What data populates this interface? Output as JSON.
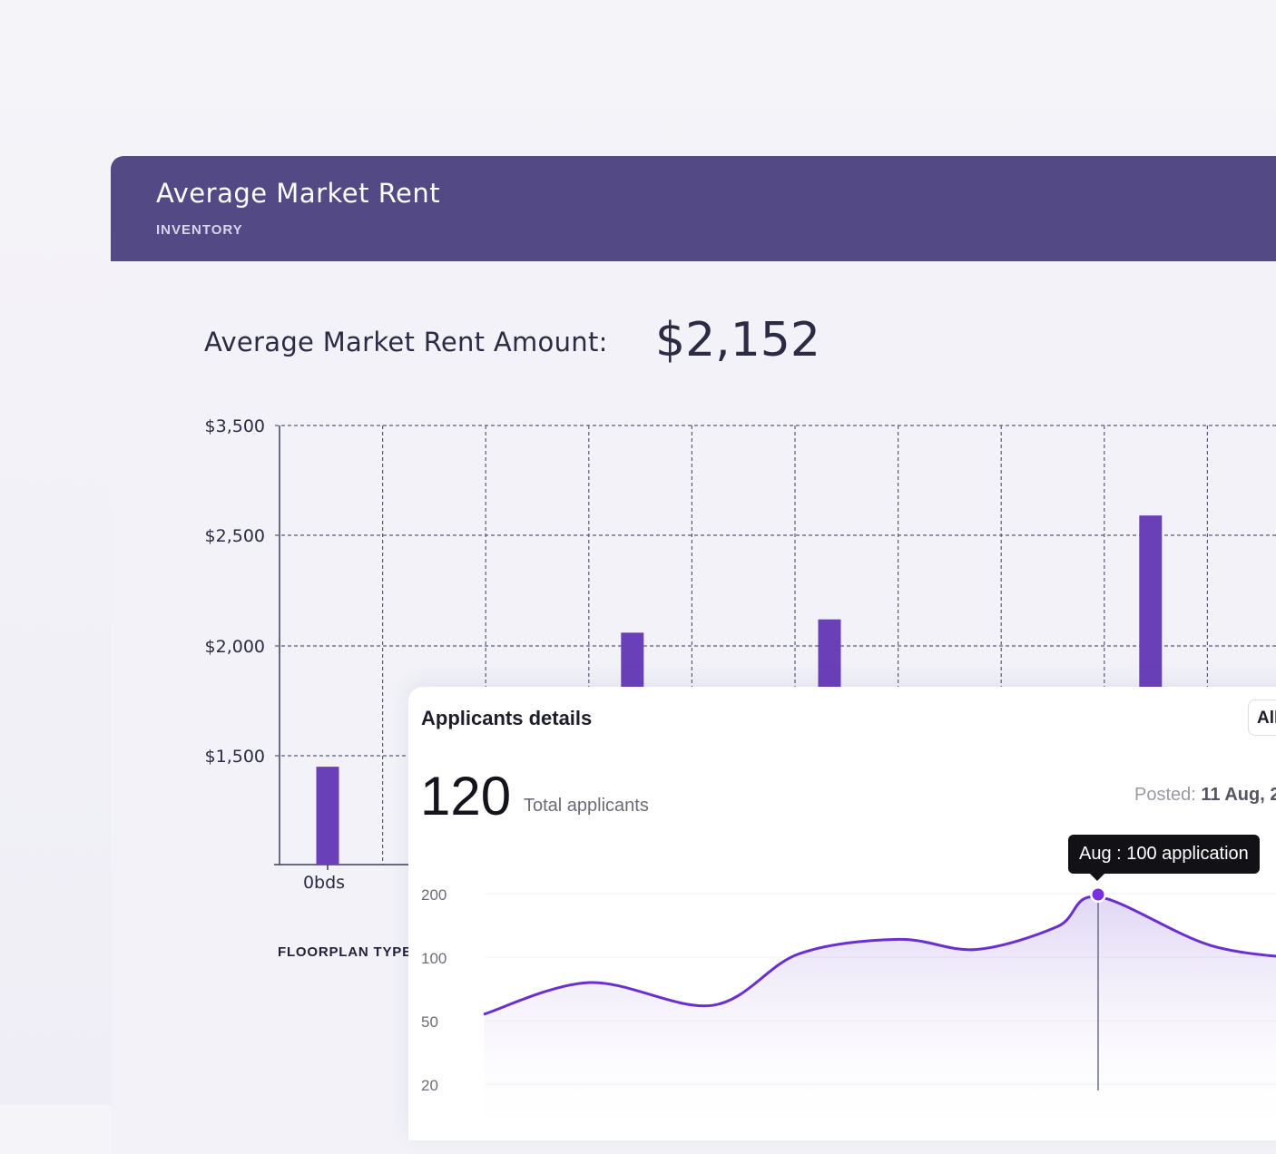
{
  "rent_card": {
    "title": "Average Market Rent",
    "subtitle": "INVENTORY",
    "amount_label": "Average Market Rent Amount:",
    "amount_value": "$2,152",
    "x_axis_title": "FLOORPLAN TYPE",
    "colors": {
      "header": "#534985",
      "bar": "#6a40b8"
    }
  },
  "applicants": {
    "title": "Applicants details",
    "filter_value": "All",
    "total_value": "120",
    "total_label": "Total applicants",
    "posted_label": "Posted:",
    "posted_date": "11 Aug, 2",
    "tooltip": "Aug : 100 application",
    "colors": {
      "line": "#6a2fd0",
      "dot": "#7a2fe0"
    }
  },
  "chart_data": [
    {
      "type": "bar",
      "title": "Average Market Rent",
      "ylabel": "",
      "xlabel": "FLOORPLAN TYPE",
      "y_ticks": [
        {
          "value": 3500,
          "label": "$3,500"
        },
        {
          "value": 2500,
          "label": "$2,500"
        },
        {
          "value": 2000,
          "label": "$2,000"
        },
        {
          "value": 1500,
          "label": "$1,500"
        }
      ],
      "categories": [
        "0bds",
        "",
        "",
        "",
        "",
        "",
        "",
        "",
        ""
      ],
      "values": [
        1450,
        null,
        null,
        2060,
        null,
        2120,
        null,
        null,
        2680
      ],
      "grid": true
    },
    {
      "type": "area",
      "title": "Applicants details",
      "y_ticks": [
        {
          "value": 200,
          "label": "200"
        },
        {
          "value": 100,
          "label": "100"
        },
        {
          "value": 50,
          "label": "50"
        },
        {
          "value": 20,
          "label": "20"
        }
      ],
      "series": [
        {
          "values": [
            55,
            80,
            62,
            105,
            128,
            112,
            148,
            195,
            118,
            98
          ]
        }
      ],
      "highlight": {
        "month": "Aug",
        "value": 100,
        "label": "Aug : 100 application"
      }
    }
  ]
}
